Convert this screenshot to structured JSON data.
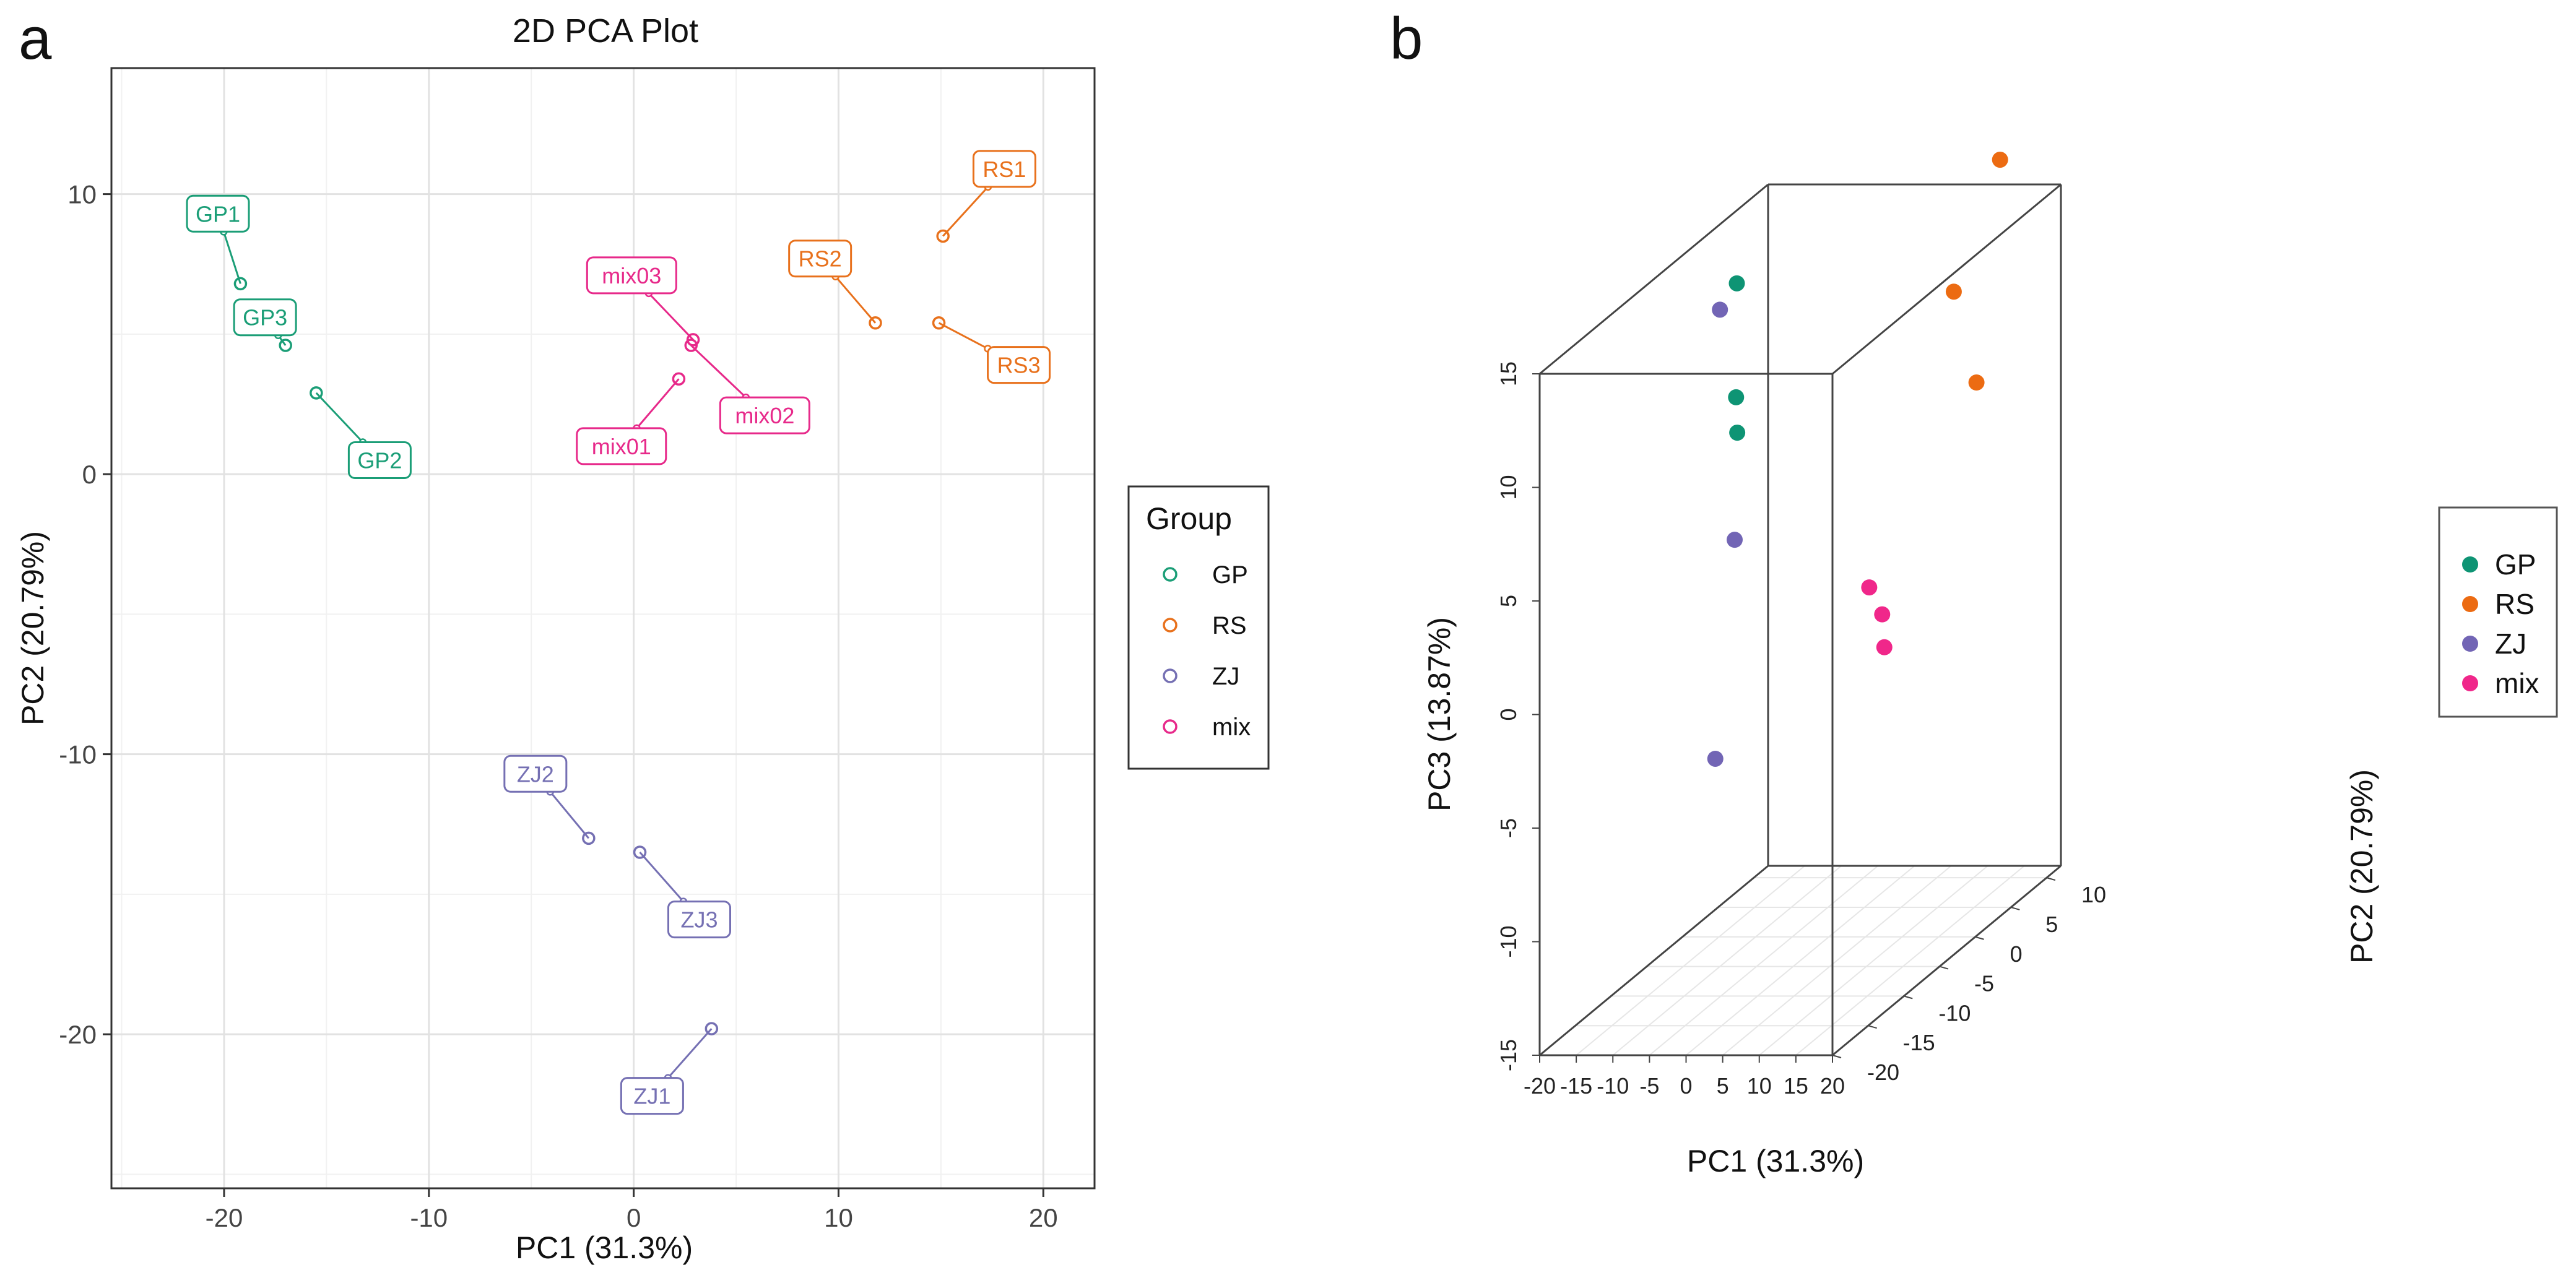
{
  "panel_labels": {
    "a": "a",
    "b": "b"
  },
  "colors": {
    "GP": "#1b9e77",
    "RS": "#e8711c",
    "ZJ": "#7570b3",
    "mix": "#e7298a"
  },
  "colors3d": {
    "GP": "#0e9474",
    "RS": "#ec6b12",
    "ZJ": "#7265b5",
    "mix": "#f0278a"
  },
  "chart_data": [
    {
      "type": "scatter",
      "title": "2D PCA Plot",
      "xlabel": "PC1 (31.3%)",
      "ylabel": "PC2 (20.79%)",
      "xlim": [
        -25.5,
        22.5
      ],
      "ylim": [
        -25.5,
        14.5
      ],
      "xticks": [
        -20,
        -10,
        0,
        10,
        20
      ],
      "yticks": [
        10,
        0,
        -10,
        -20
      ],
      "grid": true,
      "legend": {
        "title": "Group",
        "position": "right",
        "entries": [
          "GP",
          "RS",
          "ZJ",
          "mix"
        ]
      },
      "series": [
        {
          "name": "GP",
          "points": [
            {
              "label": "GP1",
              "x": -19.2,
              "y": 6.8,
              "lx": -20.3,
              "ly": 9.3
            },
            {
              "label": "GP2",
              "x": -15.5,
              "y": 2.9,
              "lx": -12.4,
              "ly": 0.5
            },
            {
              "label": "GP3",
              "x": -17.0,
              "y": 4.6,
              "lx": -18.0,
              "ly": 5.6
            }
          ]
        },
        {
          "name": "RS",
          "points": [
            {
              "label": "RS1",
              "x": 15.1,
              "y": 8.5,
              "lx": 18.1,
              "ly": 10.9
            },
            {
              "label": "RS2",
              "x": 11.8,
              "y": 5.4,
              "lx": 9.1,
              "ly": 7.7
            },
            {
              "label": "RS3",
              "x": 14.9,
              "y": 5.4,
              "lx": 18.8,
              "ly": 3.9
            }
          ]
        },
        {
          "name": "ZJ",
          "points": [
            {
              "label": "ZJ1",
              "x": 3.8,
              "y": -19.8,
              "lx": 0.9,
              "ly": -22.2
            },
            {
              "label": "ZJ2",
              "x": -2.2,
              "y": -13.0,
              "lx": -4.8,
              "ly": -10.7
            },
            {
              "label": "ZJ3",
              "x": 0.3,
              "y": -13.5,
              "lx": 3.2,
              "ly": -15.9
            }
          ]
        },
        {
          "name": "mix",
          "points": [
            {
              "label": "mix01",
              "x": 2.2,
              "y": 3.4,
              "lx": -0.6,
              "ly": 1.0
            },
            {
              "label": "mix02",
              "x": 2.8,
              "y": 4.6,
              "lx": 6.4,
              "ly": 2.1
            },
            {
              "label": "mix03",
              "x": 2.9,
              "y": 4.8,
              "lx": -0.1,
              "ly": 7.1
            }
          ]
        }
      ]
    },
    {
      "type": "scatter",
      "title": "",
      "xlabel": "PC1 (31.3%)",
      "ylabel": "PC2 (20.79%)",
      "zlabel": "PC3 (13.87%)",
      "xticks": [
        -20,
        -15,
        -10,
        -5,
        0,
        5,
        10,
        15,
        20
      ],
      "yticks": [
        -20,
        -15,
        -10,
        -5,
        0,
        5,
        10
      ],
      "zticks": [
        15,
        10,
        5,
        0,
        -5,
        -10,
        -15
      ],
      "legend": {
        "position": "right",
        "entries": [
          "GP",
          "RS",
          "ZJ",
          "mix"
        ]
      },
      "series": [
        {
          "name": "GP",
          "points": [
            [
              -19.2,
              6.8,
              12.0
            ],
            [
              -15.5,
              2.9,
              8.0
            ],
            [
              -17.0,
              4.6,
              6.0
            ]
          ]
        },
        {
          "name": "RS",
          "points": [
            [
              15.1,
              8.5,
              17.0
            ],
            [
              11.8,
              5.4,
              12.0
            ],
            [
              14.9,
              5.4,
              8.0
            ]
          ]
        },
        {
          "name": "ZJ",
          "points": [
            [
              -2.2,
              -13.0,
              16.0
            ],
            [
              0.3,
              -13.5,
              6.0
            ],
            [
              3.8,
              -19.8,
              -2.0
            ]
          ]
        },
        {
          "name": "mix",
          "points": [
            [
              2.2,
              3.4,
              -0.5
            ],
            [
              2.8,
              4.6,
              -2.0
            ],
            [
              2.9,
              4.8,
              -3.5
            ]
          ]
        }
      ]
    }
  ]
}
